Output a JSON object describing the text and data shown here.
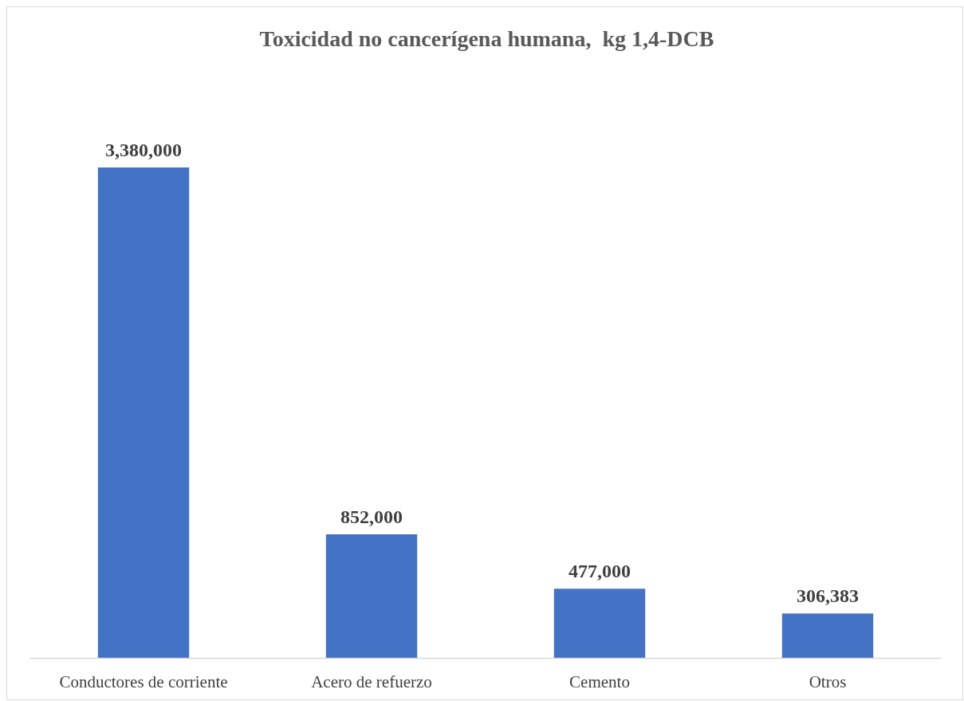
{
  "chart_data": {
    "type": "bar",
    "title": "Toxicidad no cancerígena humana,  kg 1,4-DCB",
    "categories": [
      "Conductores de corriente",
      "Acero de refuerzo",
      "Cemento",
      "Otros"
    ],
    "values": [
      3380000,
      852000,
      477000,
      306383
    ],
    "color": "#4472c4",
    "value_labels": [
      "3,380,000",
      "852,000",
      "477,000",
      "306,383"
    ]
  }
}
